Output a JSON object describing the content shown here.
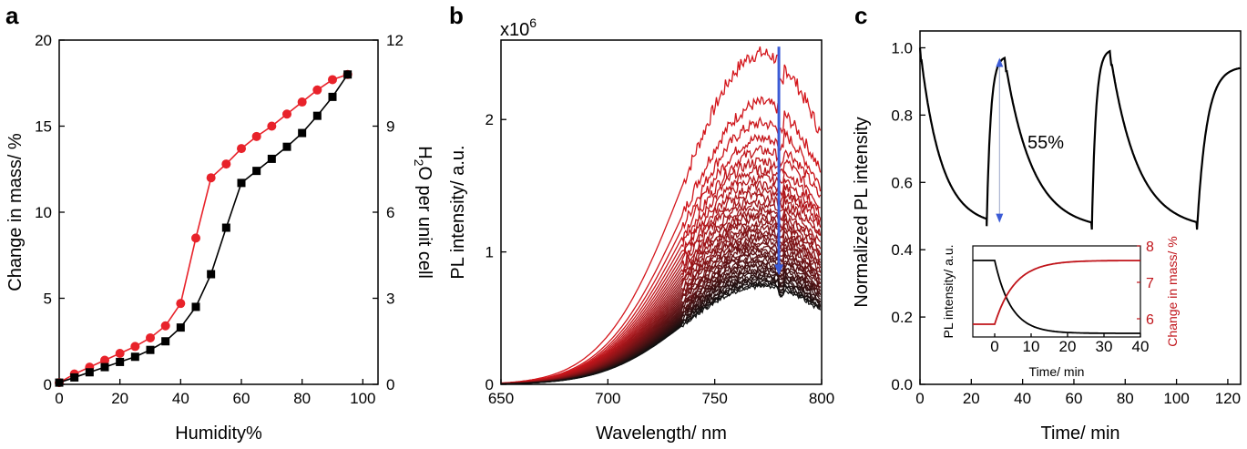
{
  "panels": {
    "a": "a",
    "b": "b",
    "c": "c"
  },
  "chart_data": [
    {
      "type": "line",
      "panel": "a",
      "xlabel": "Humidity%",
      "ylabel": "Change in mass/ %",
      "y2label": "H2O per unit cell",
      "y2label_main": "H",
      "y2label_sub": "2",
      "y2label_rest": "O per unit cell",
      "xlim": [
        0,
        105
      ],
      "ylim": [
        0,
        20
      ],
      "y2lim": [
        0,
        12
      ],
      "xticks": [
        0,
        20,
        40,
        60,
        80,
        100
      ],
      "yticks": [
        0,
        5,
        10,
        15,
        20
      ],
      "y2ticks": [
        0,
        3,
        6,
        9,
        12
      ],
      "series": [
        {
          "color": "#e8222a",
          "marker": "circle",
          "x": [
            0,
            5,
            10,
            15,
            20,
            25,
            30,
            35,
            40,
            45,
            50,
            55,
            60,
            65,
            70,
            75,
            80,
            85,
            90,
            95
          ],
          "y": [
            0.1,
            0.6,
            1.0,
            1.4,
            1.8,
            2.2,
            2.7,
            3.4,
            4.7,
            8.5,
            12.0,
            12.8,
            13.7,
            14.4,
            15.0,
            15.7,
            16.4,
            17.1,
            17.7,
            18.0
          ]
        },
        {
          "color": "#000000",
          "marker": "square",
          "x": [
            0,
            5,
            10,
            15,
            20,
            25,
            30,
            35,
            40,
            45,
            50,
            55,
            60,
            65,
            70,
            75,
            80,
            85,
            90,
            95
          ],
          "y": [
            0.1,
            0.4,
            0.7,
            1.0,
            1.3,
            1.6,
            2.0,
            2.5,
            3.3,
            4.5,
            6.4,
            9.1,
            11.7,
            12.4,
            13.1,
            13.8,
            14.6,
            15.6,
            16.7,
            18.0
          ]
        }
      ]
    },
    {
      "type": "line",
      "panel": "b",
      "xlabel": "Wavelength/ nm",
      "ylabel": "PL intensity/ a.u.",
      "multiplier": "x10",
      "multiplier_exp": "6",
      "xlim": [
        650,
        800
      ],
      "ylim": [
        0,
        2.6
      ],
      "xticks": [
        650,
        700,
        750,
        800
      ],
      "yticks": [
        0,
        1,
        2
      ],
      "peak_wavelength": 772,
      "curve_width": 52,
      "n_curves": 40,
      "peak_intensity_max": 2.5,
      "peak_intensity_min": 0.74,
      "color_start": "#d4161c",
      "color_end": "#101010",
      "arrow_color": "#3b5bd6",
      "arrow_x": 780,
      "arrow_from": 2.55,
      "arrow_to": 0.85
    },
    {
      "type": "line",
      "panel": "c",
      "xlabel": "Time/ min",
      "ylabel": "Normalized PL intensity",
      "xlim": [
        0,
        125
      ],
      "ylim": [
        0,
        1.05
      ],
      "xticks": [
        0,
        20,
        40,
        60,
        80,
        100,
        120
      ],
      "yticks": [
        0,
        0.2,
        0.4,
        0.6,
        0.8,
        1.0
      ],
      "annotation": "55%",
      "annotation_arrow": {
        "x": 31,
        "from": 0.97,
        "to": 0.48,
        "color": "#3b5bd6"
      },
      "cycles": [
        {
          "t_start": 0,
          "t_end": 26,
          "from": 1.0,
          "to": 0.47
        },
        {
          "t_start": 26,
          "t_end": 33,
          "from": 0.47,
          "to": 0.97,
          "rise": true
        },
        {
          "t_start": 33,
          "t_end": 67,
          "from": 0.97,
          "to": 0.46
        },
        {
          "t_start": 67,
          "t_end": 74,
          "from": 0.46,
          "to": 0.99,
          "rise": true
        },
        {
          "t_start": 74,
          "t_end": 108,
          "from": 0.99,
          "to": 0.46
        },
        {
          "t_start": 108,
          "t_end": 125,
          "from": 0.46,
          "to": 0.94,
          "rise": true
        }
      ],
      "inset": {
        "xlabel": "Time/ min",
        "ylabel": "PL intensity/ a.u.",
        "y2label": "Change in mass/ %",
        "xlim": [
          -6,
          40
        ],
        "xticks": [
          0,
          10,
          20,
          30,
          40
        ],
        "y2lim": [
          5.5,
          8
        ],
        "y2ticks": [
          6,
          7,
          8
        ],
        "y2color": "#c0141a",
        "pl_series": {
          "color": "#000000",
          "plateau": 0.84,
          "final": 0.04
        },
        "mass_series": {
          "color": "#c0141a",
          "start": 5.85,
          "end": 7.6
        }
      }
    }
  ]
}
